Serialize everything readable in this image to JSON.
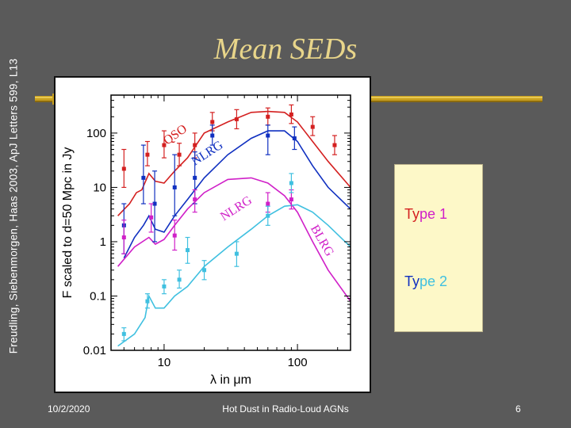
{
  "side_citation": "Freudling, Siebenmorgen, Haas 2003, ApJ Letters 599, L13",
  "slide_title": "Mean SEDs",
  "legend": {
    "entries": [
      {
        "parts": [
          {
            "text": "Ty",
            "color": "#d42020"
          },
          {
            "text": "pe 1",
            "color": "#d020c8"
          }
        ]
      },
      {
        "parts": [
          {
            "text": "Ty",
            "color": "#1030c0"
          },
          {
            "text": "pe 2",
            "color": "#40c0e0"
          }
        ]
      }
    ]
  },
  "footer": {
    "date": "10/2/2020",
    "center": "Hot Dust in Radio-Loud AGNs",
    "page": "6"
  },
  "colors": {
    "background": "#5a5a5a",
    "title": "#e8d58a",
    "accent_rule": "#c8a020"
  },
  "chart_data": {
    "type": "line",
    "xlabel": "λ in μm",
    "ylabel": "F scaled to d=50 Mpc in Jy",
    "xscale": "log",
    "yscale": "log",
    "xlim": [
      4,
      250
    ],
    "ylim": [
      0.01,
      500
    ],
    "x_ticks": [
      10,
      100
    ],
    "x_tick_labels": [
      "10",
      "100"
    ],
    "y_ticks": [
      0.01,
      0.1,
      1,
      10,
      100
    ],
    "y_tick_labels": [
      "0.01",
      "0.1",
      "1",
      "10",
      "100"
    ],
    "grid": false,
    "series": [
      {
        "name": "QSO",
        "color": "#d42020",
        "curve": {
          "x": [
            4.5,
            5.5,
            6.2,
            6.8,
            7.7,
            8.6,
            10,
            12,
            15,
            20,
            30,
            45,
            60,
            80,
            100,
            130,
            170,
            250
          ],
          "y": [
            3,
            5,
            8,
            9,
            18,
            13,
            12,
            20,
            35,
            100,
            160,
            240,
            250,
            240,
            160,
            70,
            30,
            10
          ]
        },
        "points": {
          "x": [
            5,
            7.5,
            10,
            13,
            17,
            23,
            35,
            60,
            90,
            130,
            190
          ],
          "y": [
            22,
            40,
            60,
            40,
            60,
            160,
            180,
            200,
            220,
            130,
            60
          ],
          "err": [
            [
              10,
              50
            ],
            [
              25,
              70
            ],
            [
              35,
              110
            ],
            [
              25,
              65
            ],
            [
              35,
              100
            ],
            [
              110,
              240
            ],
            [
              120,
              270
            ],
            [
              140,
              290
            ],
            [
              150,
              330
            ],
            [
              90,
              200
            ],
            [
              40,
              90
            ]
          ]
        }
      },
      {
        "name": "NLRG",
        "color": "#1030c0",
        "curve": {
          "x": [
            5,
            6,
            7,
            7.7,
            8.6,
            10,
            12,
            15,
            20,
            30,
            45,
            60,
            80,
            100,
            130,
            170,
            250
          ],
          "y": [
            0.5,
            1.2,
            2,
            3,
            1.7,
            1.5,
            3,
            6,
            15,
            40,
            80,
            110,
            110,
            70,
            25,
            10,
            4
          ]
        },
        "points": {
          "x": [
            5,
            7,
            8.5,
            12,
            17,
            23,
            60,
            95
          ],
          "y": [
            2,
            15,
            5,
            10,
            15,
            90,
            90,
            80
          ],
          "err": [
            [
              0.6,
              5
            ],
            [
              5,
              60
            ],
            [
              1,
              20
            ],
            [
              3,
              40
            ],
            [
              5,
              45
            ],
            [
              60,
              140
            ],
            [
              40,
              140
            ],
            [
              50,
              130
            ]
          ]
        }
      },
      {
        "name": "BLRG",
        "color": "#d020c8",
        "curve": {
          "x": [
            4.5,
            6,
            7.7,
            8.6,
            10,
            12,
            15,
            20,
            30,
            45,
            60,
            80,
            100,
            130,
            170,
            250
          ],
          "y": [
            0.35,
            0.8,
            1.2,
            0.9,
            1.1,
            2,
            4,
            8,
            14,
            15,
            12,
            7,
            3.5,
            1,
            0.3,
            0.08
          ]
        },
        "points": {
          "x": [
            5,
            8,
            12,
            17,
            60,
            90
          ],
          "y": [
            1.2,
            2.8,
            1.3,
            6,
            5,
            6
          ],
          "err": [
            [
              0.6,
              2.5
            ],
            [
              1.5,
              5
            ],
            [
              0.7,
              2.5
            ],
            [
              3.5,
              9
            ],
            [
              3.5,
              8
            ],
            [
              4,
              9
            ]
          ]
        }
      },
      {
        "name": "NLRG",
        "color": "#40c0e0",
        "curve": {
          "x": [
            4.5,
            6,
            7.2,
            7.7,
            8.6,
            10,
            12,
            15,
            20,
            30,
            45,
            60,
            80,
            100,
            130,
            170,
            250
          ],
          "y": [
            0.012,
            0.02,
            0.04,
            0.1,
            0.06,
            0.06,
            0.1,
            0.15,
            0.35,
            0.8,
            1.7,
            3,
            4.5,
            4.8,
            3.5,
            2,
            0.8
          ]
        },
        "points": {
          "x": [
            5,
            7.5,
            10,
            13,
            15,
            20,
            35,
            60,
            90
          ],
          "y": [
            0.02,
            0.08,
            0.15,
            0.2,
            0.7,
            0.3,
            0.6,
            3,
            12
          ],
          "err": [
            [
              0.015,
              0.026
            ],
            [
              0.06,
              0.11
            ],
            [
              0.11,
              0.2
            ],
            [
              0.14,
              0.3
            ],
            [
              0.4,
              1.2
            ],
            [
              0.2,
              0.45
            ],
            [
              0.35,
              1
            ],
            [
              2,
              4.5
            ],
            [
              8,
              18
            ]
          ]
        }
      }
    ],
    "annotations": [
      {
        "text": "QSO",
        "color": "#d42020",
        "x": 10.5,
        "y": 60,
        "angle": -35
      },
      {
        "text": "NLRG",
        "color": "#1030c0",
        "x": 17,
        "y": 25,
        "angle": -33
      },
      {
        "text": "NLRG",
        "color": "#d020c8",
        "x": 28,
        "y": 2.4,
        "angle": -33
      },
      {
        "text": "BLRG",
        "color": "#d020c8",
        "x": 125,
        "y": 1.8,
        "angle": 60
      }
    ]
  }
}
